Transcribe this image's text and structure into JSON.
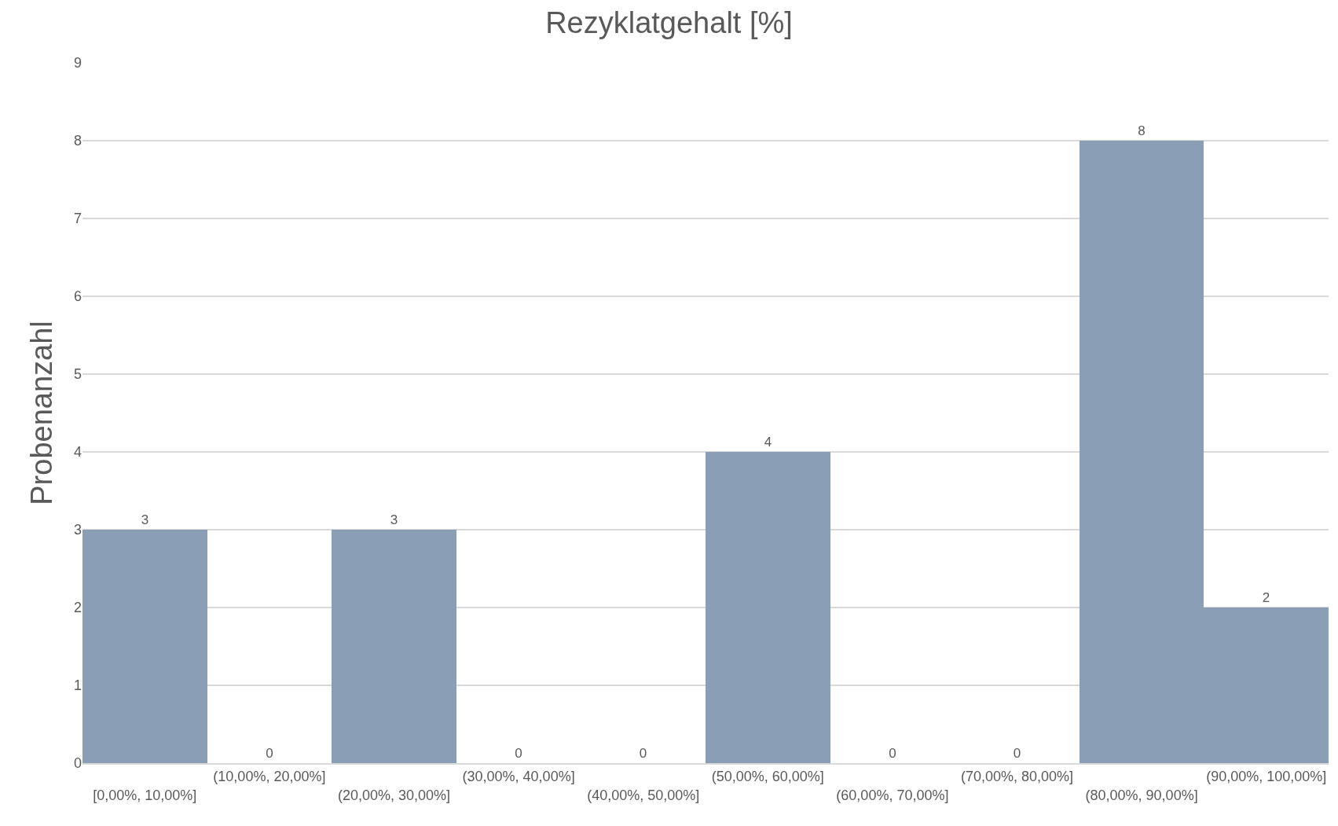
{
  "chart_data": {
    "type": "bar",
    "title": "Rezyklatgehalt [%]",
    "ylabel": "Probenanzahl",
    "categories": [
      "[0,00%, 10,00%]",
      "(10,00%, 20,00%]",
      "(20,00%, 30,00%]",
      "(30,00%, 40,00%]",
      "(40,00%, 50,00%]",
      "(50,00%, 60,00%]",
      "(60,00%, 70,00%]",
      "(70,00%, 80,00%]",
      "(80,00%, 90,00%]",
      "(90,00%, 100,00%]"
    ],
    "values": [
      3,
      0,
      3,
      0,
      0,
      4,
      0,
      0,
      8,
      2
    ],
    "color": "#8a9eb6",
    "ylim": [
      0,
      9
    ],
    "yticks": [
      0,
      1,
      2,
      3,
      4,
      5,
      6,
      7,
      8,
      9
    ],
    "grid": "y",
    "data_labels": true
  }
}
